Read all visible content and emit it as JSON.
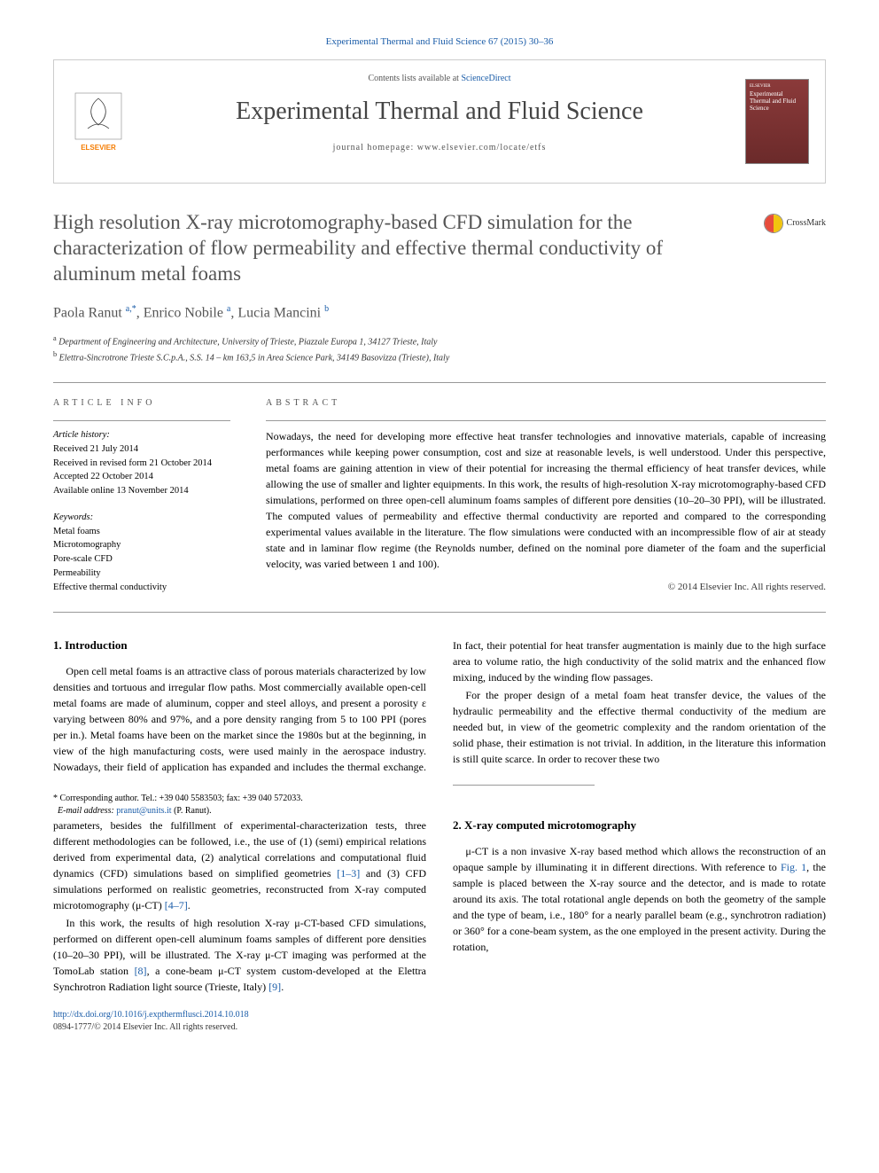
{
  "journal_ref": "Experimental Thermal and Fluid Science 67 (2015) 30–36",
  "contents_prefix": "Contents lists available at ",
  "contents_link": "ScienceDirect",
  "journal_title": "Experimental Thermal and Fluid Science",
  "homepage_prefix": "journal homepage: ",
  "homepage_url": "www.elsevier.com/locate/etfs",
  "cover": {
    "pub": "ELSEVIER",
    "title": "Experimental Thermal and Fluid Science"
  },
  "crossmark": "CrossMark",
  "title": "High resolution X-ray microtomography-based CFD simulation for the characterization of flow permeability and effective thermal conductivity of aluminum metal foams",
  "authors_html": "Paola Ranut <sup>a,*</sup>, Enrico Nobile <sup>a</sup>, Lucia Mancini <sup>b</sup>",
  "affiliations": [
    "a Department of Engineering and Architecture, University of Trieste, Piazzale Europa 1, 34127 Trieste, Italy",
    "b Elettra-Sincrotrone Trieste S.C.p.A., S.S. 14 – km 163,5 in Area Science Park, 34149 Basovizza (Trieste), Italy"
  ],
  "info_heading": "ARTICLE INFO",
  "abstract_heading": "ABSTRACT",
  "history": {
    "label": "Article history:",
    "received": "Received 21 July 2014",
    "revised": "Received in revised form 21 October 2014",
    "accepted": "Accepted 22 October 2014",
    "online": "Available online 13 November 2014"
  },
  "keywords": {
    "label": "Keywords:",
    "items": [
      "Metal foams",
      "Microtomography",
      "Pore-scale CFD",
      "Permeability",
      "Effective thermal conductivity"
    ]
  },
  "abstract": "Nowadays, the need for developing more effective heat transfer technologies and innovative materials, capable of increasing performances while keeping power consumption, cost and size at reasonable levels, is well understood. Under this perspective, metal foams are gaining attention in view of their potential for increasing the thermal efficiency of heat transfer devices, while allowing the use of smaller and lighter equipments. In this work, the results of high-resolution X-ray microtomography-based CFD simulations, performed on three open-cell aluminum foams samples of different pore densities (10–20–30 PPI), will be illustrated. The computed values of permeability and effective thermal conductivity are reported and compared to the corresponding experimental values available in the literature. The flow simulations were conducted with an incompressible flow of air at steady state and in laminar flow regime (the Reynolds number, defined on the nominal pore diameter of the foam and the superficial velocity, was varied between 1 and 100).",
  "abstract_copyright": "© 2014 Elsevier Inc. All rights reserved.",
  "sections": {
    "s1": {
      "heading": "1. Introduction",
      "p1": "Open cell metal foams is an attractive class of porous materials characterized by low densities and tortuous and irregular flow paths. Most commercially available open-cell metal foams are made of aluminum, copper and steel alloys, and present a porosity ε varying between 80% and 97%, and a pore density ranging from 5 to 100 PPI (pores per in.). Metal foams have been on the market since the 1980s but at the beginning, in view of the high manufacturing costs, were used mainly in the aerospace industry. Nowadays, their field of application has expanded and includes the thermal exchange. In fact, their potential for heat transfer augmentation is mainly due to the high surface area to volume ratio, the high conductivity of the solid matrix and the enhanced flow mixing, induced by the winding flow passages.",
      "p2a": "For the proper design of a metal foam heat transfer device, the values of the hydraulic permeability and the effective thermal conductivity of the medium are needed but, in view of the geometric complexity and the random orientation of the solid phase, their estimation is not trivial. In addition, in the literature this information is still quite scarce. In order to recover these two ",
      "p2b": "parameters, besides the fulfillment of experimental-characterization tests, three different methodologies can be followed, i.e., the use of (1) (semi) empirical relations derived from experimental data, (2) analytical correlations and computational fluid dynamics (CFD) simulations based on simplified geometries ",
      "ref1": "[1–3]",
      "p2c": " and (3) CFD simulations performed on realistic geometries, reconstructed from X-ray computed microtomography (μ-CT) ",
      "ref2": "[4–7]",
      "p2d": ".",
      "p3a": "In this work, the results of high resolution X-ray μ-CT-based CFD simulations, performed on different open-cell aluminum foams samples of different pore densities (10–20–30 PPI), will be illustrated. The X-ray μ-CT imaging was performed at the TomoLab station ",
      "ref3": "[8]",
      "p3b": ", a cone-beam μ-CT system custom-developed at the Elettra Synchrotron Radiation light source (Trieste, Italy) ",
      "ref4": "[9]",
      "p3c": "."
    },
    "s2": {
      "heading": "2. X-ray computed microtomography",
      "p1a": "μ-CT is a non invasive X-ray based method which allows the reconstruction of an opaque sample by illuminating it in different directions. With reference to ",
      "fig1": "Fig. 1",
      "p1b": ", the sample is placed between the X-ray source and the detector, and is made to rotate around its axis. The total rotational angle depends on both the geometry of the sample and the type of beam, i.e., 180° for a nearly parallel beam (e.g., synchrotron radiation) or 360° for a cone-beam system, as the one employed in the present activity. During the rotation,"
    }
  },
  "corresponding": {
    "star": "*",
    "text": "Corresponding author. Tel.: +39 040 5583503; fax: +39 040 572033.",
    "email_label": "E-mail address:",
    "email": "pranut@units.it",
    "name": "(P. Ranut)."
  },
  "footer": {
    "doi": "http://dx.doi.org/10.1016/j.expthermflusci.2014.10.018",
    "issn_copy": "0894-1777/© 2014 Elsevier Inc. All rights reserved."
  },
  "colors": {
    "link": "#1a5ca8",
    "text": "#000000",
    "muted": "#555555",
    "rule": "#999999",
    "elsevier_orange": "#f57c00",
    "cover_bg": "#8b3a3a"
  },
  "typography": {
    "body_pt": 12,
    "title_pt": 23,
    "journal_title_pt": 28,
    "small_pt": 10
  }
}
